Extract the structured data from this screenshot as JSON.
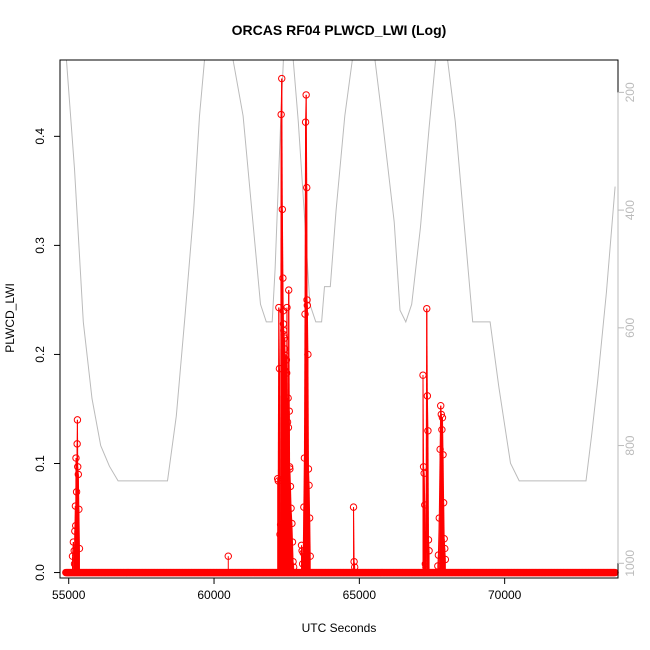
{
  "chart_data": {
    "type": "scatter",
    "title": "ORCAS RF04 PLWCD_LWI (Log)",
    "xlabel": "UTC Seconds",
    "ylabel": "PLWCD_LWI",
    "xlim": [
      54700,
      73900
    ],
    "ylim": [
      -0.005,
      0.47
    ],
    "x_ticks": [
      55000,
      60000,
      65000,
      70000
    ],
    "y_ticks": [
      0.0,
      0.1,
      0.2,
      0.3,
      0.4
    ],
    "y_tick_labels": [
      "0.0",
      "0.1",
      "0.2",
      "0.3",
      "0.4"
    ],
    "right_axis": {
      "ylim": [
        1025,
        145
      ],
      "ticks": [
        200,
        400,
        600,
        800,
        1000
      ],
      "reversed": true,
      "color": "#bbbbbb"
    },
    "baseline": {
      "x_start": 54900,
      "x_end": 73800,
      "value": 0.0
    },
    "series": [
      {
        "color": "#ff0000",
        "points": [
          [
            55130,
            0.015
          ],
          [
            55160,
            0.028
          ],
          [
            55190,
            0.02
          ],
          [
            55210,
            0.038
          ],
          [
            55230,
            0.061
          ],
          [
            55250,
            0.105
          ],
          [
            55270,
            0.074
          ],
          [
            55290,
            0.118
          ],
          [
            55300,
            0.14
          ],
          [
            55310,
            0.097
          ],
          [
            55330,
            0.09
          ],
          [
            55350,
            0.058
          ],
          [
            55370,
            0.022
          ],
          [
            55200,
            0.008
          ],
          [
            55240,
            0.043
          ],
          [
            60490,
            0.015
          ],
          [
            62190,
            0.086
          ],
          [
            62210,
            0.084
          ],
          [
            62230,
            0.243
          ],
          [
            62250,
            0.187
          ],
          [
            62270,
            0.035
          ],
          [
            62290,
            0.044
          ],
          [
            62310,
            0.42
          ],
          [
            62330,
            0.453
          ],
          [
            62350,
            0.333
          ],
          [
            62370,
            0.27
          ],
          [
            62380,
            0.24
          ],
          [
            62390,
            0.228
          ],
          [
            62400,
            0.222
          ],
          [
            62410,
            0.218
          ],
          [
            62420,
            0.197
          ],
          [
            62430,
            0.215
          ],
          [
            62440,
            0.205
          ],
          [
            62450,
            0.185
          ],
          [
            62470,
            0.199
          ],
          [
            62490,
            0.195
          ],
          [
            62500,
            0.183
          ],
          [
            62510,
            0.243
          ],
          [
            62530,
            0.138
          ],
          [
            62550,
            0.16
          ],
          [
            62560,
            0.133
          ],
          [
            62570,
            0.259
          ],
          [
            62590,
            0.148
          ],
          [
            62600,
            0.097
          ],
          [
            62610,
            0.095
          ],
          [
            62630,
            0.079
          ],
          [
            62650,
            0.059
          ],
          [
            62680,
            0.045
          ],
          [
            62700,
            0.028
          ],
          [
            62720,
            0.01
          ],
          [
            62740,
            0.005
          ],
          [
            63010,
            0.025
          ],
          [
            63030,
            0.02
          ],
          [
            63050,
            0.008
          ],
          [
            63070,
            0.018
          ],
          [
            63090,
            0.06
          ],
          [
            63110,
            0.105
          ],
          [
            63130,
            0.237
          ],
          [
            63150,
            0.413
          ],
          [
            63170,
            0.438
          ],
          [
            63190,
            0.353
          ],
          [
            63200,
            0.25
          ],
          [
            63210,
            0.245
          ],
          [
            63230,
            0.2
          ],
          [
            63250,
            0.095
          ],
          [
            63270,
            0.08
          ],
          [
            63290,
            0.05
          ],
          [
            63310,
            0.015
          ],
          [
            64800,
            0.06
          ],
          [
            64820,
            0.01
          ],
          [
            64840,
            0.005
          ],
          [
            67190,
            0.181
          ],
          [
            67210,
            0.097
          ],
          [
            67230,
            0.091
          ],
          [
            67250,
            0.062
          ],
          [
            67270,
            0.008
          ],
          [
            67290,
            0.005
          ],
          [
            67320,
            0.242
          ],
          [
            67340,
            0.162
          ],
          [
            67360,
            0.13
          ],
          [
            67380,
            0.03
          ],
          [
            67400,
            0.02
          ],
          [
            67700,
            0.006
          ],
          [
            67720,
            0.016
          ],
          [
            67750,
            0.05
          ],
          [
            67780,
            0.113
          ],
          [
            67800,
            0.153
          ],
          [
            67820,
            0.145
          ],
          [
            67840,
            0.131
          ],
          [
            67860,
            0.142
          ],
          [
            67880,
            0.108
          ],
          [
            67900,
            0.064
          ],
          [
            67920,
            0.031
          ],
          [
            67940,
            0.022
          ],
          [
            67960,
            0.012
          ]
        ]
      },
      {
        "color": "#bbbbbb",
        "axis": "right",
        "points": [
          [
            54900,
            130
          ],
          [
            55200,
            330
          ],
          [
            55500,
            590
          ],
          [
            55800,
            720
          ],
          [
            56100,
            800
          ],
          [
            56400,
            835
          ],
          [
            56700,
            860
          ],
          [
            57500,
            860
          ],
          [
            58400,
            860
          ],
          [
            58700,
            750
          ],
          [
            59000,
            580
          ],
          [
            59300,
            400
          ],
          [
            59500,
            240
          ],
          [
            59700,
            130
          ],
          [
            60000,
            130
          ],
          [
            60600,
            130
          ],
          [
            61000,
            240
          ],
          [
            61300,
            400
          ],
          [
            61600,
            560
          ],
          [
            61800,
            590
          ],
          [
            62000,
            590
          ],
          [
            62100,
            500
          ],
          [
            62300,
            240
          ],
          [
            62400,
            130
          ],
          [
            62700,
            130
          ],
          [
            62900,
            250
          ],
          [
            63100,
            400
          ],
          [
            63300,
            560
          ],
          [
            63500,
            590
          ],
          [
            63700,
            590
          ],
          [
            63800,
            530
          ],
          [
            64000,
            530
          ],
          [
            64200,
            400
          ],
          [
            64500,
            240
          ],
          [
            64800,
            130
          ],
          [
            65500,
            130
          ],
          [
            65800,
            250
          ],
          [
            66200,
            420
          ],
          [
            66400,
            570
          ],
          [
            66600,
            590
          ],
          [
            66800,
            560
          ],
          [
            67100,
            430
          ],
          [
            67400,
            260
          ],
          [
            67650,
            130
          ],
          [
            68000,
            130
          ],
          [
            68300,
            250
          ],
          [
            68600,
            420
          ],
          [
            68900,
            590
          ],
          [
            69500,
            590
          ],
          [
            69800,
            700
          ],
          [
            70200,
            830
          ],
          [
            70500,
            860
          ],
          [
            72000,
            860
          ],
          [
            72800,
            860
          ],
          [
            73000,
            780
          ],
          [
            73200,
            690
          ],
          [
            73500,
            540
          ],
          [
            73800,
            360
          ]
        ]
      }
    ]
  }
}
